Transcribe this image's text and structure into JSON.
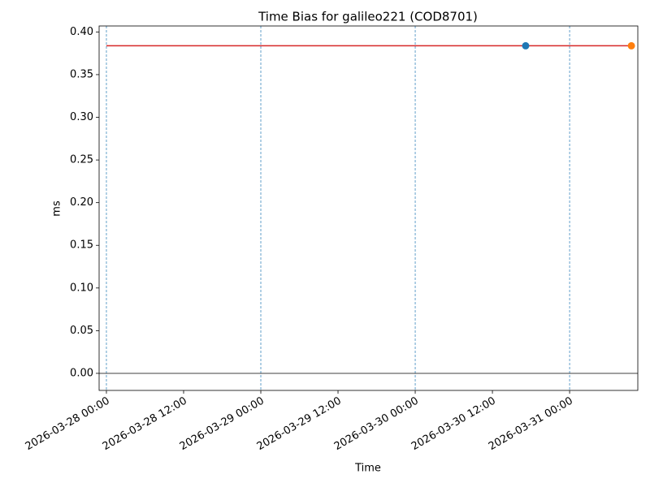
{
  "chart_data": {
    "type": "line",
    "title": "Time Bias for galileo221 (COD8701)",
    "xlabel": "Time",
    "ylabel": "ms",
    "xlim": [
      "2026-03-27 22:52",
      "2026-03-31 10:36"
    ],
    "xticks": [
      "2026-03-28 00:00",
      "2026-03-28 12:00",
      "2026-03-29 00:00",
      "2026-03-29 12:00",
      "2026-03-30 00:00",
      "2026-03-30 12:00",
      "2026-03-31 00:00"
    ],
    "ylim": [
      -0.02,
      0.407
    ],
    "yticks": [
      {
        "value": 0,
        "label": "0.00"
      },
      {
        "value": 0.05,
        "label": "0.05"
      },
      {
        "value": 0.1,
        "label": "0.10"
      },
      {
        "value": 0.15,
        "label": "0.15"
      },
      {
        "value": 0.2,
        "label": "0.20"
      },
      {
        "value": 0.25,
        "label": "0.25"
      },
      {
        "value": 0.3,
        "label": "0.30"
      },
      {
        "value": 0.35,
        "label": "0.35"
      },
      {
        "value": 0.4,
        "label": "0.40"
      }
    ],
    "vlines": [
      "2026-03-28 00:00",
      "2026-03-29 00:00",
      "2026-03-30 00:00",
      "2026-03-31 00:00"
    ],
    "vline_color": "#1f77b4",
    "hline": 0,
    "series": [
      {
        "style": "line",
        "color": "#d62728",
        "x": [
          "2026-03-28 00:00",
          "2026-03-31 09:36"
        ],
        "values": [
          0.3838,
          0.3838
        ]
      },
      {
        "style": "point",
        "color": "#1f77b4",
        "x": [
          "2026-03-30 17:10"
        ],
        "values": [
          0.3838
        ]
      },
      {
        "style": "point",
        "color": "#ff7f0e",
        "x": [
          "2026-03-31 09:36"
        ],
        "values": [
          0.3838
        ]
      }
    ]
  }
}
